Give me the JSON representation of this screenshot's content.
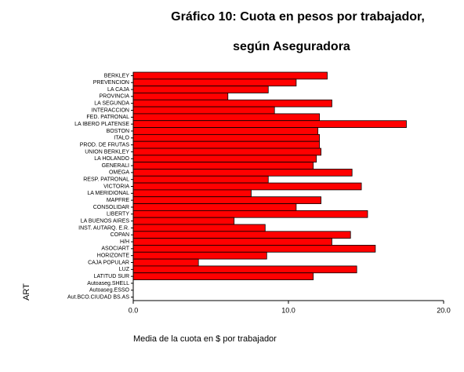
{
  "chart_data": {
    "type": "hbar",
    "title": [
      "Gráfico 10: Cuota en pesos por trabajador,",
      "según Aseguradora"
    ],
    "xlabel": "Media de la cuota en $ por trabajador",
    "ylabel": "ART",
    "categories": [
      "BERKLEY",
      "PREVENCION",
      "LA CAJA",
      "PROVINCIA",
      "LA SEGUNDA",
      "INTERACCION",
      "FED. PATRONAL",
      "LA IBERO PLATENSE",
      "BOSTON",
      "ITALO",
      "PROD. DE FRUTAS",
      "UNION BERKLEY",
      "LA HOLANDO",
      "GENERALI",
      "OMEGA",
      "RESP. PATRONAL",
      "VICTORIA",
      "LA MERIDIONAL",
      "MAPFRE",
      "CONSOLIDAR",
      "LIBERTY",
      "LA BUENOS AIRES",
      "INST. AUTARQ. E.R.",
      "COPAN",
      "H/H",
      "ASOCIART",
      "HORIZONTE",
      "CAJA POPULAR",
      "LUZ",
      "LATITUD SUR",
      "Autoaseg.SHELL",
      "Autoaseg.ESSO",
      "Aut.BCO.CIUDAD BS.AS"
    ],
    "values": [
      12.5,
      10.5,
      8.7,
      6.1,
      12.8,
      9.1,
      12.0,
      17.6,
      11.9,
      12.0,
      12.0,
      12.1,
      11.8,
      11.6,
      14.1,
      8.7,
      14.7,
      7.6,
      12.1,
      10.5,
      15.1,
      6.5,
      8.5,
      14.0,
      12.8,
      15.6,
      8.6,
      4.2,
      14.4,
      11.6,
      null,
      null,
      null
    ],
    "color": "#ff0000",
    "xlim": [
      0,
      20
    ],
    "xticks": [
      {
        "value": 0,
        "label": "0.0"
      },
      {
        "value": 10,
        "label": "10.0"
      },
      {
        "value": 20,
        "label": "20.0"
      }
    ]
  }
}
